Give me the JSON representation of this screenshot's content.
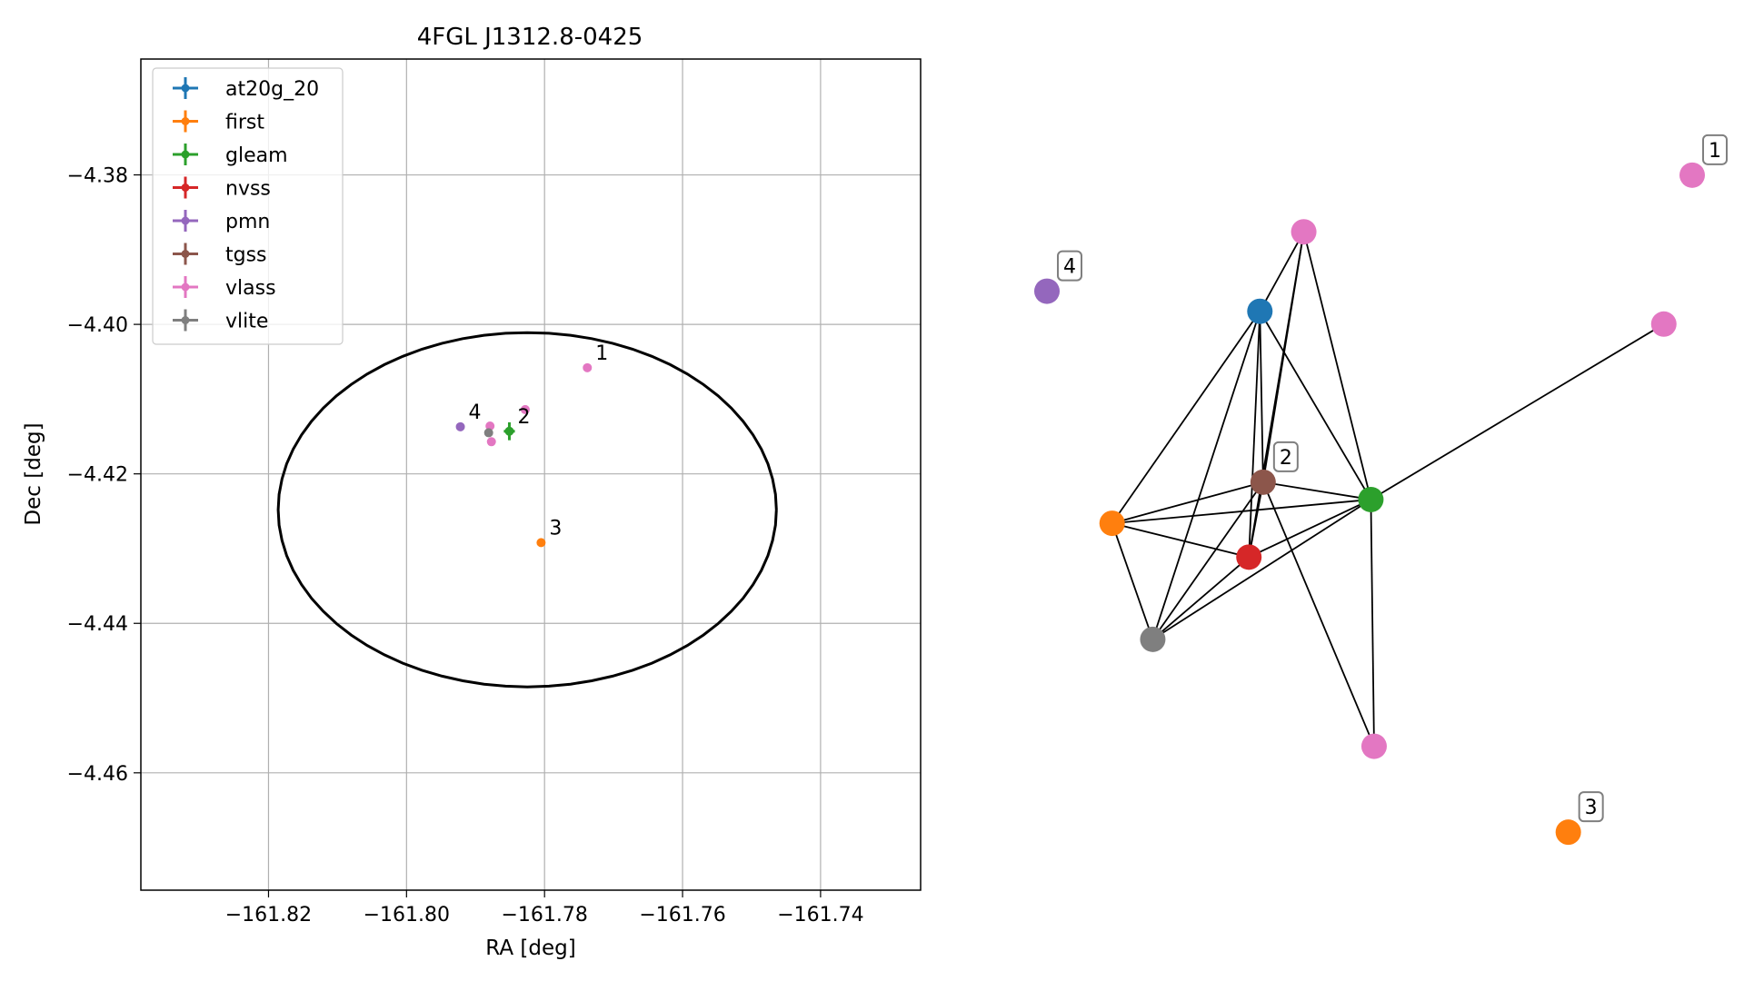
{
  "chart_data": [
    {
      "type": "scatter",
      "title": "4FGL J1312.8-0425",
      "xlabel": "RA [deg]",
      "ylabel": "Dec [deg]",
      "xlim": [
        -161.8385,
        -161.7255
      ],
      "ylim": [
        -4.4757,
        -4.3645
      ],
      "x_ticks": [
        {
          "value": -161.82,
          "label": "−161.82"
        },
        {
          "value": -161.8,
          "label": "−161.80"
        },
        {
          "value": -161.78,
          "label": "−161.78"
        },
        {
          "value": -161.76,
          "label": "−161.76"
        },
        {
          "value": -161.74,
          "label": "−161.74"
        }
      ],
      "y_ticks": [
        {
          "value": -4.38,
          "label": "−4.38"
        },
        {
          "value": -4.4,
          "label": "−4.40"
        },
        {
          "value": -4.42,
          "label": "−4.42"
        },
        {
          "value": -4.44,
          "label": "−4.44"
        },
        {
          "value": -4.46,
          "label": "−4.46"
        }
      ],
      "grid": true,
      "legend_position": "top-left",
      "series": [
        {
          "name": "at20g_20",
          "color": "#1f77b4",
          "points": []
        },
        {
          "name": "first",
          "color": "#ff7f0e",
          "points": [
            {
              "x": -161.7805,
              "y": -4.4292
            }
          ]
        },
        {
          "name": "gleam",
          "color": "#2ca02c",
          "points": [
            {
              "x": -161.7851,
              "y": -4.4143,
              "xerr": 0.0008,
              "yerr": 0.0012
            }
          ]
        },
        {
          "name": "nvss",
          "color": "#d62728",
          "points": []
        },
        {
          "name": "pmn",
          "color": "#9467bd",
          "points": [
            {
              "x": -161.7922,
              "y": -4.4137
            }
          ]
        },
        {
          "name": "tgss",
          "color": "#8c564b",
          "points": []
        },
        {
          "name": "vlass",
          "color": "#e377c2",
          "points": [
            {
              "x": -161.7738,
              "y": -4.4058
            },
            {
              "x": -161.7828,
              "y": -4.4114
            },
            {
              "x": -161.7879,
              "y": -4.4136
            },
            {
              "x": -161.7877,
              "y": -4.4157
            }
          ]
        },
        {
          "name": "vlite",
          "color": "#7f7f7f",
          "points": [
            {
              "x": -161.7881,
              "y": -4.4145
            }
          ]
        }
      ],
      "point_annotations": [
        {
          "label": "1",
          "x": -161.7738,
          "y": -4.4058
        },
        {
          "label": "2",
          "x": -161.7851,
          "y": -4.4143
        },
        {
          "label": "3",
          "x": -161.7805,
          "y": -4.4292
        },
        {
          "label": "4",
          "x": -161.7922,
          "y": -4.4137
        }
      ],
      "ellipse": {
        "center_x": -161.7825,
        "center_y": -4.4248,
        "semi_x": 0.0361,
        "semi_y": 0.0237,
        "color": "#000000"
      }
    },
    {
      "type": "network",
      "nodes": [
        {
          "id": "at20g",
          "color": "#1f77b4",
          "label": "",
          "x": 0.33,
          "y": 0.285
        },
        {
          "id": "first_a",
          "color": "#ff7f0e",
          "label": "",
          "x": 0.101,
          "y": 0.517
        },
        {
          "id": "gleam",
          "color": "#2ca02c",
          "label": "",
          "x": 0.502,
          "y": 0.491
        },
        {
          "id": "nvss",
          "color": "#d62728",
          "label": "",
          "x": 0.313,
          "y": 0.554
        },
        {
          "id": "pmn",
          "color": "#9467bd",
          "label": "4",
          "x": 0.0,
          "y": 0.263
        },
        {
          "id": "tgss",
          "color": "#8c564b",
          "label": "2",
          "x": 0.335,
          "y": 0.472
        },
        {
          "id": "vlass_top",
          "color": "#e377c2",
          "label": "",
          "x": 0.398,
          "y": 0.198
        },
        {
          "id": "vlass_right",
          "color": "#e377c2",
          "label": "",
          "x": 0.956,
          "y": 0.299
        },
        {
          "id": "vlass_bottom",
          "color": "#e377c2",
          "label": "",
          "x": 0.507,
          "y": 0.761
        },
        {
          "id": "vlite",
          "color": "#7f7f7f",
          "label": "",
          "x": 0.164,
          "y": 0.644
        },
        {
          "id": "vlass_far",
          "color": "#e377c2",
          "label": "1",
          "x": 1.0,
          "y": 0.136
        },
        {
          "id": "first_far",
          "color": "#ff7f0e",
          "label": "3",
          "x": 0.808,
          "y": 0.855
        }
      ],
      "edges": [
        [
          "at20g",
          "vlass_top"
        ],
        [
          "at20g",
          "first_a"
        ],
        [
          "at20g",
          "tgss"
        ],
        [
          "at20g",
          "gleam"
        ],
        [
          "at20g",
          "nvss"
        ],
        [
          "at20g",
          "vlite"
        ],
        [
          "vlass_top",
          "tgss"
        ],
        [
          "vlass_top",
          "nvss"
        ],
        [
          "vlass_top",
          "gleam"
        ],
        [
          "first_a",
          "tgss"
        ],
        [
          "first_a",
          "gleam"
        ],
        [
          "first_a",
          "nvss"
        ],
        [
          "first_a",
          "vlite"
        ],
        [
          "tgss",
          "gleam"
        ],
        [
          "tgss",
          "nvss"
        ],
        [
          "tgss",
          "vlite"
        ],
        [
          "tgss",
          "vlass_bottom"
        ],
        [
          "gleam",
          "nvss"
        ],
        [
          "gleam",
          "vlite"
        ],
        [
          "gleam",
          "vlass_right"
        ],
        [
          "gleam",
          "vlass_bottom"
        ],
        [
          "nvss",
          "vlite"
        ]
      ]
    }
  ]
}
